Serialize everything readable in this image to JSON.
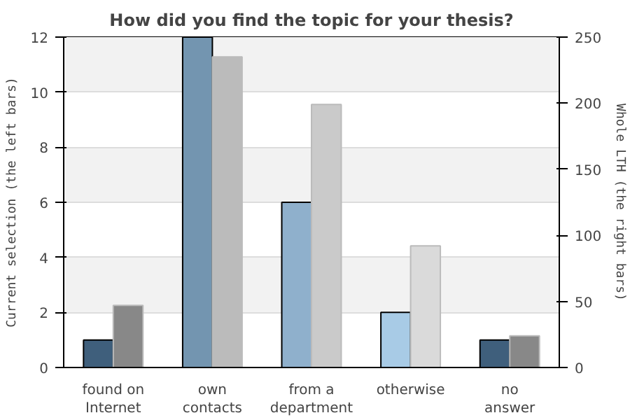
{
  "chart_data": {
    "type": "bar",
    "title": "How did you find the topic for your thesis?",
    "categories": [
      "found on\nInternet",
      "own\ncontacts",
      "from a\ndepartment",
      "otherwise",
      "no\nanswer"
    ],
    "ylabel": "Current selection (the left bars)",
    "y2label": "Whole LTH (the right bars)",
    "series": [
      {
        "values": [
          1,
          12,
          6,
          2,
          1
        ],
        "colors": [
          "#3f5f7c",
          "#7395b0",
          "#8fb0cc",
          "#a8cbe6",
          "#3f5f7c"
        ]
      },
      {
        "values": [
          47,
          235,
          199,
          92,
          24
        ],
        "axis": "y2",
        "colors": [
          "#888888",
          "#bbbbbb",
          "#cacaca",
          "#dadada",
          "#888888"
        ]
      }
    ],
    "ylim": [
      0,
      12
    ],
    "yticks": [
      0,
      2,
      4,
      6,
      8,
      10,
      12
    ],
    "y2lim": [
      0,
      250
    ],
    "y2ticks": [
      0,
      50,
      100,
      150,
      200,
      250
    ],
    "grid": "y"
  }
}
